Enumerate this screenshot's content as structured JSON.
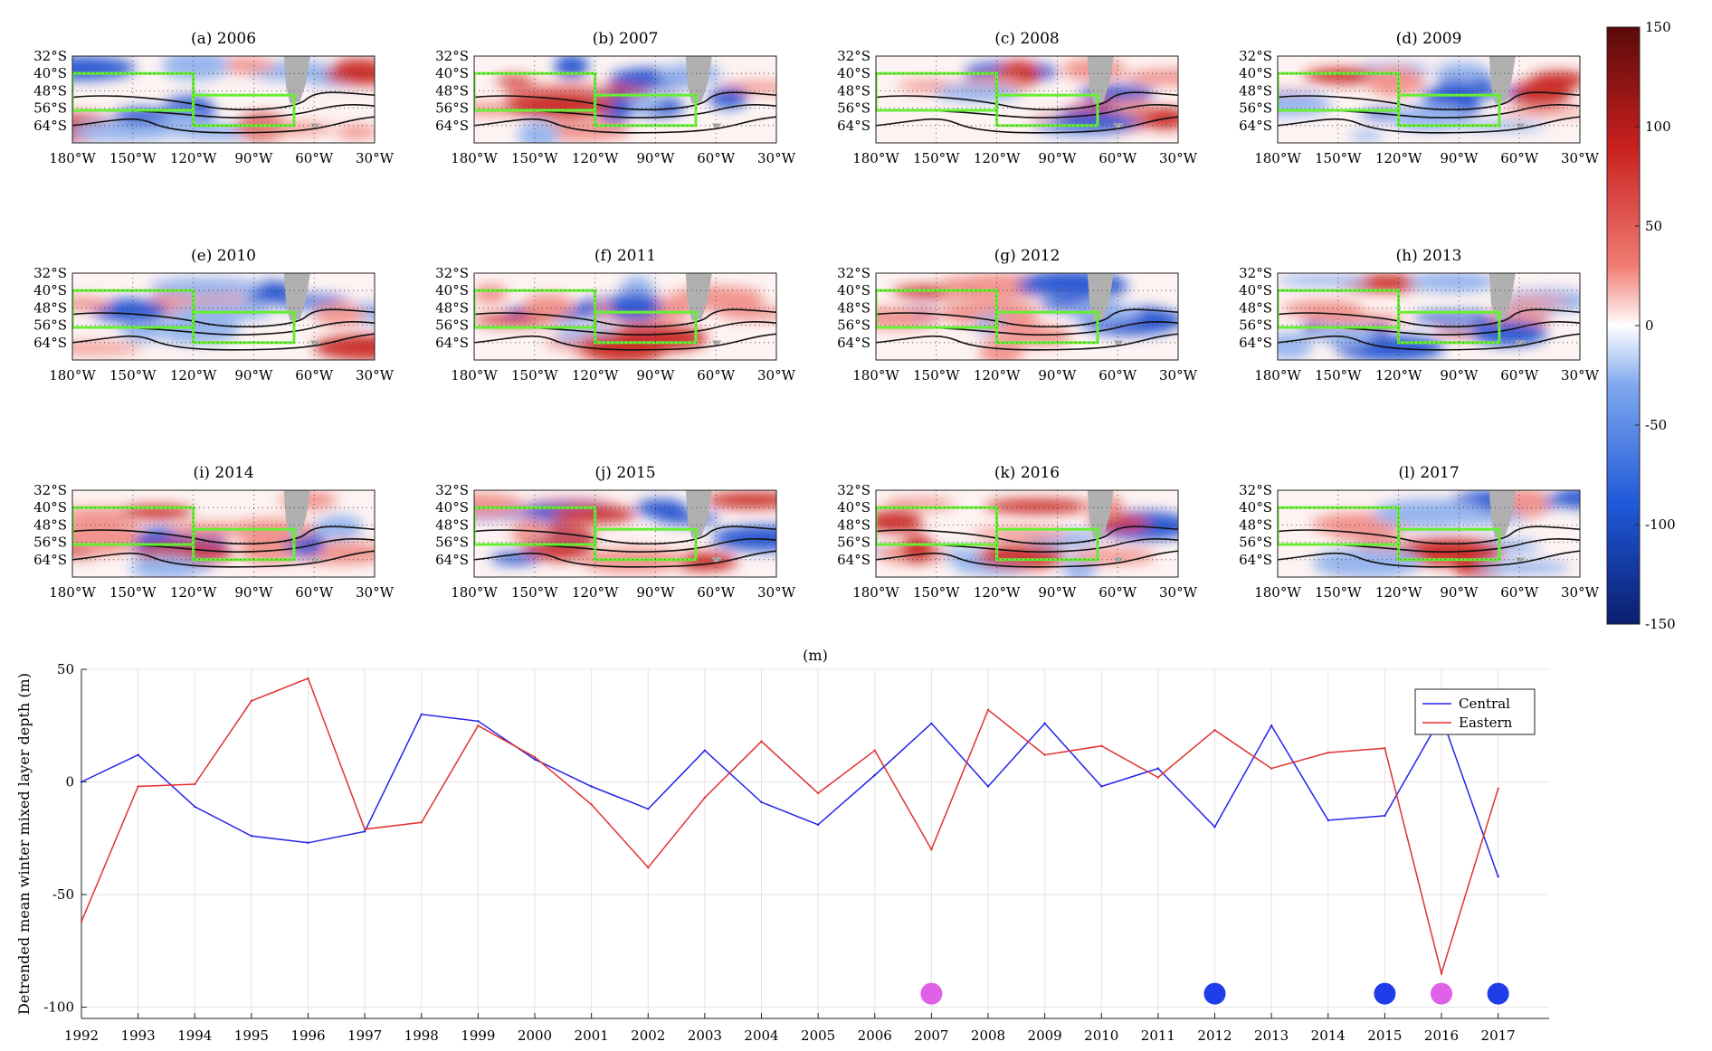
{
  "colorbar": {
    "ticks": [
      150,
      100,
      50,
      0,
      -50,
      -100,
      -150
    ],
    "range": [
      -150,
      150
    ],
    "colors": {
      "low": "#0a1e6e",
      "mid_low": "#2f6fe0",
      "zero": "#ffffff",
      "mid_high": "#e23a32",
      "high": "#5a0a0a"
    }
  },
  "maps": {
    "lat_ticks": [
      "32°S",
      "40°S",
      "48°S",
      "56°S",
      "64°S"
    ],
    "lon_ticks": [
      "180°W",
      "150°W",
      "120°W",
      "90°W",
      "60°W",
      "30°W"
    ],
    "box_color": "#66ee33",
    "land_color": "#b0b0b0",
    "panels": [
      {
        "label": "(a) 2006"
      },
      {
        "label": "(b) 2007"
      },
      {
        "label": "(c) 2008"
      },
      {
        "label": "(d) 2009"
      },
      {
        "label": "(e) 2010"
      },
      {
        "label": "(f) 2011"
      },
      {
        "label": "(g) 2012"
      },
      {
        "label": "(h) 2013"
      },
      {
        "label": "(i) 2014"
      },
      {
        "label": "(j) 2015"
      },
      {
        "label": "(k) 2016"
      },
      {
        "label": "(l) 2017"
      }
    ]
  },
  "chart_data": {
    "type": "line",
    "title": "(m)",
    "ylabel": "Detrended mean winter mixed layer depth (m)",
    "xlabel": "",
    "x": [
      1992,
      1993,
      1994,
      1995,
      1996,
      1997,
      1998,
      1999,
      2000,
      2001,
      2002,
      2003,
      2004,
      2005,
      2006,
      2007,
      2008,
      2009,
      2010,
      2011,
      2012,
      2013,
      2014,
      2015,
      2016,
      2017
    ],
    "xlim": [
      1992,
      2017.9
    ],
    "ylim": [
      -105,
      50
    ],
    "yticks": [
      50,
      0,
      -50,
      -100
    ],
    "grid": true,
    "legend": "top-right",
    "series": [
      {
        "name": "Central",
        "color": "#2222ee",
        "values": [
          0,
          12,
          -11,
          -24,
          -27,
          -22,
          30,
          27,
          10,
          -2,
          -12,
          14,
          -9,
          -19,
          3,
          26,
          -2,
          26,
          -2,
          6,
          -20,
          25,
          -17,
          -15,
          29,
          -42
        ]
      },
      {
        "name": "Eastern",
        "color": "#e23030",
        "values": [
          -62,
          -2,
          -1,
          36,
          46,
          -21,
          -18,
          25,
          11,
          -10,
          -38,
          -7,
          18,
          -5,
          14,
          -30,
          32,
          12,
          16,
          2,
          23,
          6,
          13,
          15,
          -85,
          -3
        ]
      }
    ],
    "markers": [
      {
        "x": 2007,
        "y": -94,
        "color": "#e060e8"
      },
      {
        "x": 2012,
        "y": -94,
        "color": "#1f3de8"
      },
      {
        "x": 2015,
        "y": -94,
        "color": "#1f3de8"
      },
      {
        "x": 2016,
        "y": -94,
        "color": "#e060e8"
      },
      {
        "x": 2017,
        "y": -94,
        "color": "#1f3de8"
      }
    ]
  }
}
